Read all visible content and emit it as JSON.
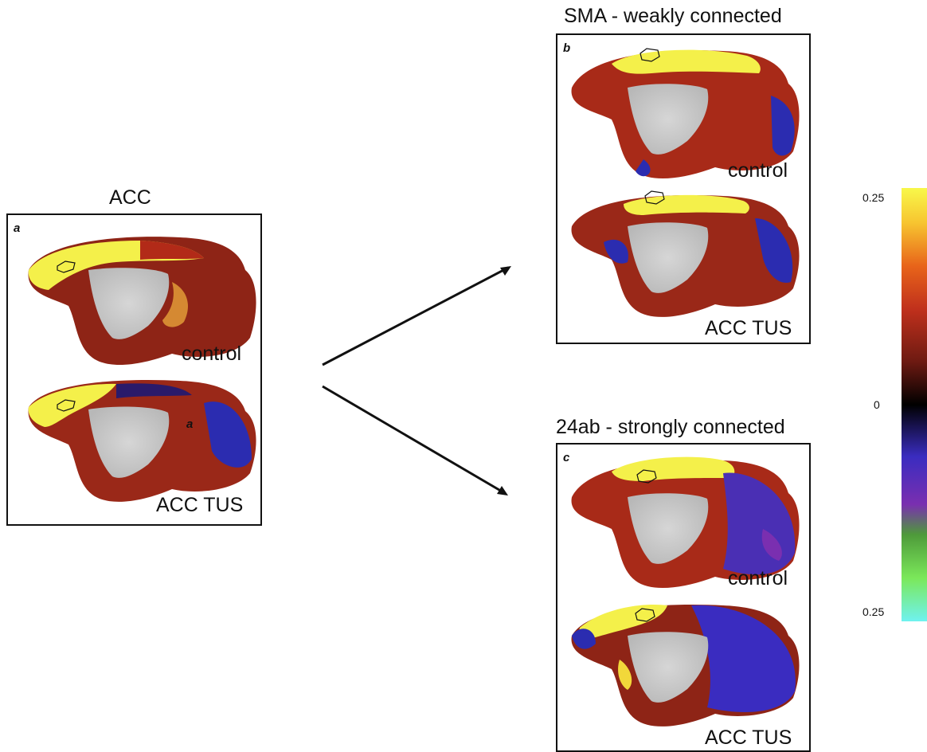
{
  "panels": [
    {
      "id": "a",
      "title": "ACC",
      "letter": "a",
      "inner_letter": "a",
      "conditions": [
        "control",
        "ACC TUS"
      ]
    },
    {
      "id": "b",
      "title": "SMA - weakly connected",
      "letter": "b",
      "conditions": [
        "control",
        "ACC TUS"
      ]
    },
    {
      "id": "c",
      "title": "24ab - strongly connected",
      "letter": "c",
      "conditions": [
        "control",
        "ACC TUS"
      ]
    }
  ],
  "colorbar": {
    "top_label": "0.25",
    "mid_label": "0",
    "bottom_label": "0.25",
    "colors": [
      "#6ff2f0",
      "#7be85a",
      "#4e9a3a",
      "#7a2fb0",
      "#3a2cc0",
      "#000000",
      "#6e1a12",
      "#c0301c",
      "#e8641a",
      "#f7c530",
      "#f8f84a"
    ]
  }
}
